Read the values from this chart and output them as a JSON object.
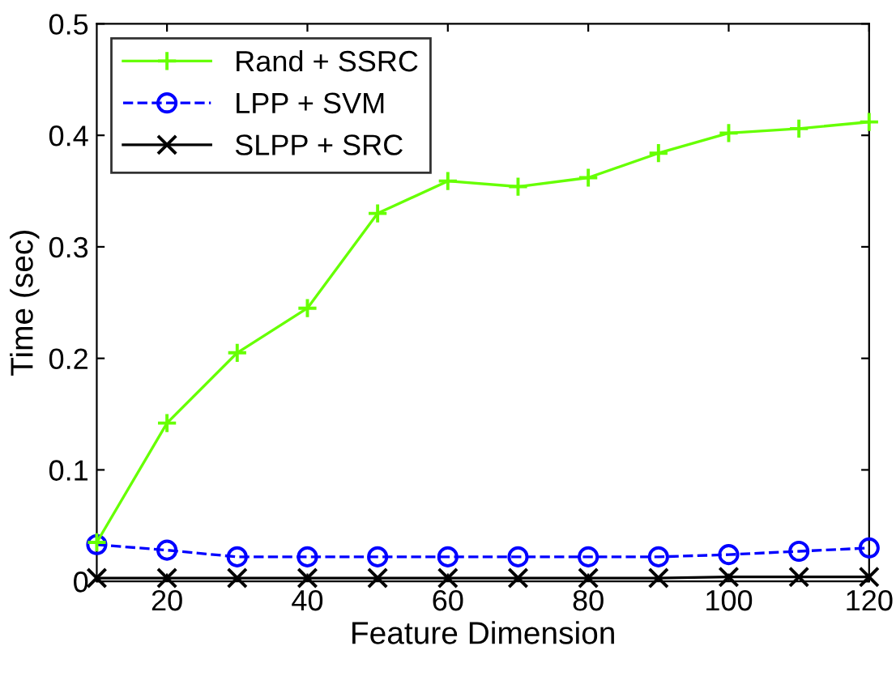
{
  "chart_data": {
    "type": "line",
    "xlabel": "Feature Dimension",
    "ylabel": "Time (sec)",
    "x": [
      10,
      20,
      30,
      40,
      50,
      60,
      70,
      80,
      90,
      100,
      110,
      120
    ],
    "series": [
      {
        "name": "Rand + SSRC",
        "color": "#66ff00",
        "marker": "plus",
        "line_style": "solid",
        "values": [
          0.035,
          0.142,
          0.205,
          0.245,
          0.33,
          0.359,
          0.354,
          0.362,
          0.384,
          0.402,
          0.406,
          0.412
        ]
      },
      {
        "name": "LPP + SVM",
        "color": "#0000ff",
        "marker": "circle",
        "line_style": "dashed",
        "values": [
          0.033,
          0.028,
          0.022,
          0.022,
          0.022,
          0.022,
          0.022,
          0.022,
          0.022,
          0.024,
          0.027,
          0.03
        ]
      },
      {
        "name": "SLPP + SRC",
        "color": "#000000",
        "marker": "cross",
        "line_style": "solid",
        "values": [
          0.003,
          0.003,
          0.003,
          0.003,
          0.003,
          0.003,
          0.003,
          0.003,
          0.003,
          0.004,
          0.004,
          0.004
        ]
      }
    ],
    "xlim": [
      10,
      120
    ],
    "xticks": [
      20,
      40,
      60,
      80,
      100,
      120
    ],
    "ylim": [
      0,
      0.5
    ],
    "yticks": [
      0,
      0.1,
      0.2,
      0.3,
      0.4,
      0.5
    ],
    "grid": false,
    "legend": "top left"
  }
}
